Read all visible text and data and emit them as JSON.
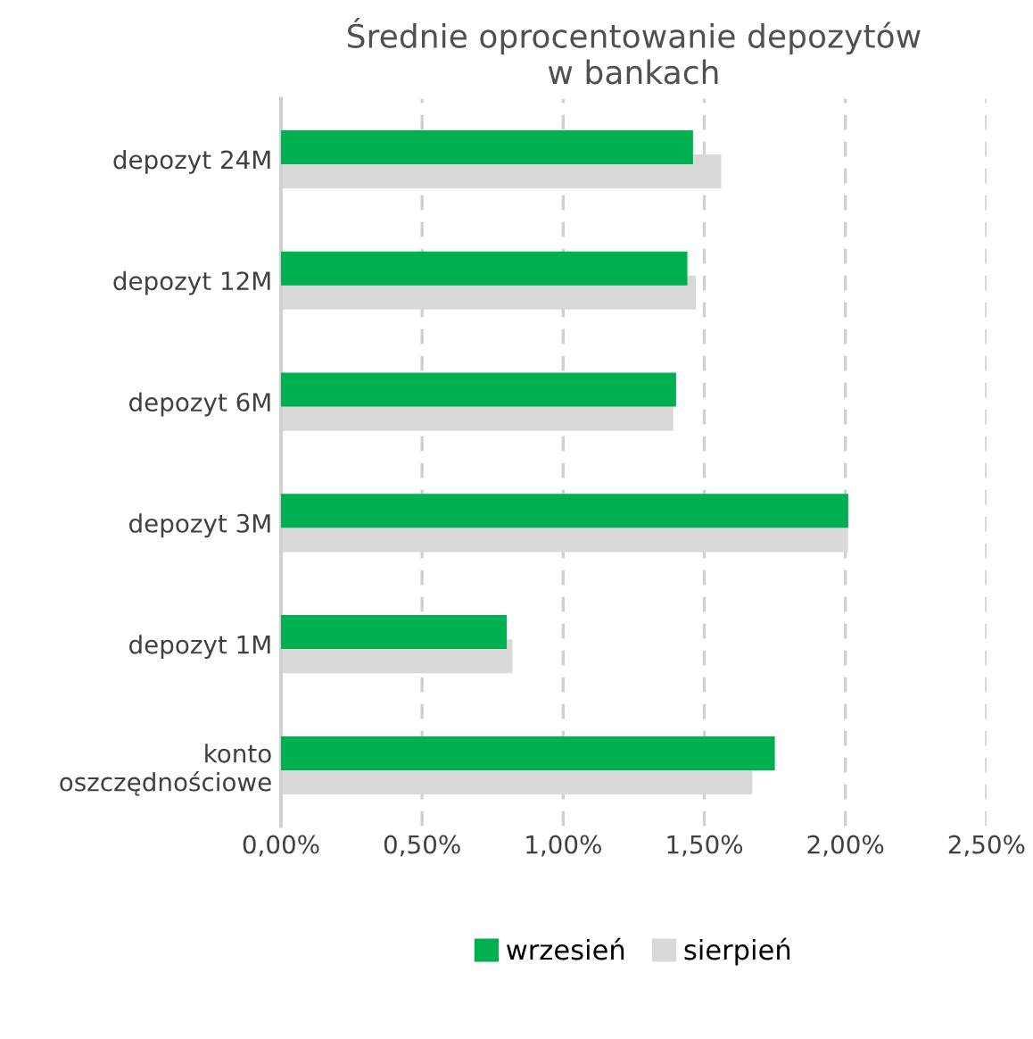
{
  "chart_data": {
    "type": "bar",
    "orientation": "horizontal",
    "title": "Średnie oprocentowanie depozytów\nw bankach",
    "categories": [
      "depozyt 24M",
      "depozyt 12M",
      "depozyt 6M",
      "depozyt 3M",
      "depozyt 1M",
      "konto\noszczędnościowe"
    ],
    "series": [
      {
        "name": "wrzesień",
        "color": "#00b050",
        "values": [
          1.46,
          1.44,
          1.4,
          2.01,
          0.8,
          1.75
        ]
      },
      {
        "name": "sierpień",
        "color": "#d9d9d9",
        "values": [
          1.56,
          1.47,
          1.39,
          2.01,
          0.82,
          1.67
        ]
      }
    ],
    "xlim": [
      0,
      2.5
    ],
    "xticks": [
      {
        "value": 0,
        "label": "0,00%"
      },
      {
        "value": 0.5,
        "label": "0,50%"
      },
      {
        "value": 1.0,
        "label": "1,00%"
      },
      {
        "value": 1.5,
        "label": "1,50%"
      },
      {
        "value": 2.0,
        "label": "2,00%"
      },
      {
        "value": 2.5,
        "label": "2,50%"
      }
    ],
    "grid": "x",
    "legend": "bottom"
  }
}
